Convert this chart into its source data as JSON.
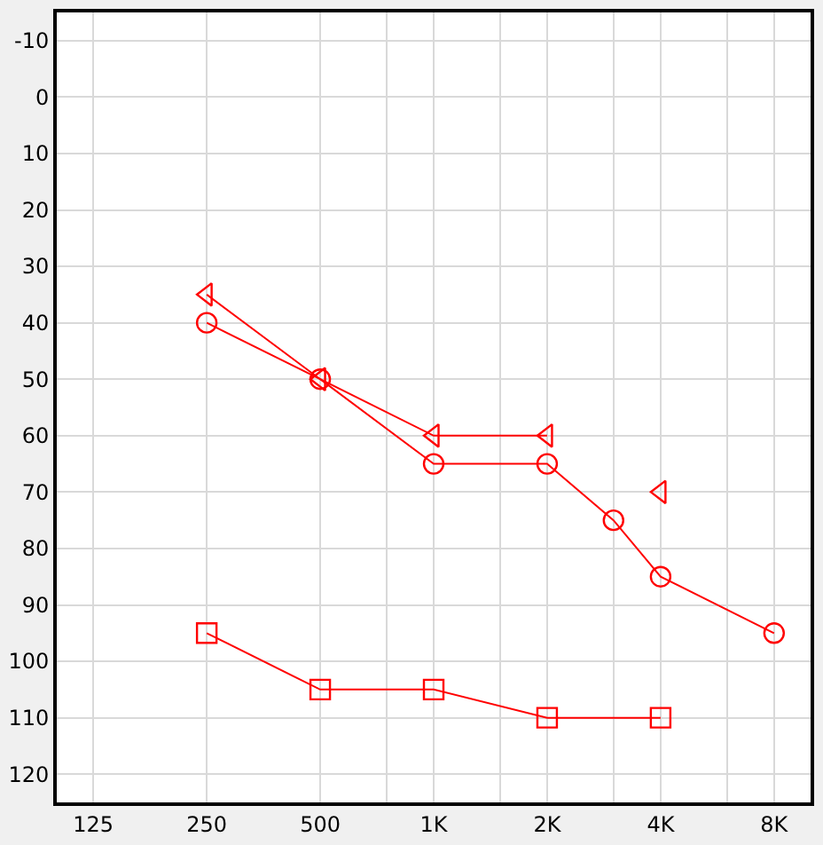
{
  "chart_data": {
    "type": "line",
    "log": "x",
    "xlim": [
      100,
      10000
    ],
    "ylim": [
      125,
      -15
    ],
    "xticks": [
      125,
      250,
      500,
      {
        "value": 750,
        "label": null
      },
      {
        "value": 1000,
        "label": "1K"
      },
      {
        "value": 1500,
        "label": null
      },
      {
        "value": 2000,
        "label": "2K"
      },
      {
        "value": 3000,
        "label": null
      },
      {
        "value": 4000,
        "label": "4K"
      },
      {
        "value": 6000,
        "label": null
      },
      {
        "value": 8000,
        "label": "8K"
      }
    ],
    "yticks": [
      -10,
      0,
      10,
      20,
      30,
      40,
      50,
      60,
      70,
      80,
      90,
      100,
      110,
      120
    ],
    "grid": true,
    "series": [
      {
        "color": "#ff0000",
        "marker": "circle",
        "x": [
          250,
          500,
          1000,
          2000,
          3000,
          4000,
          8000
        ],
        "values": [
          40,
          50,
          65,
          65,
          75,
          85,
          95
        ]
      },
      {
        "color": "#ff0000",
        "marker": "triangle",
        "x": [
          250,
          500,
          1000,
          2000
        ],
        "values": [
          35,
          50,
          60,
          60
        ]
      },
      {
        "color": "#ff0000",
        "marker": "triangle",
        "type": "scatter",
        "x": [
          4000
        ],
        "values": [
          70
        ]
      },
      {
        "color": "#ff0000",
        "marker": "square",
        "x": [
          250,
          500,
          1000,
          2000,
          4000
        ],
        "values": [
          95,
          105,
          105,
          110,
          110
        ]
      }
    ]
  }
}
